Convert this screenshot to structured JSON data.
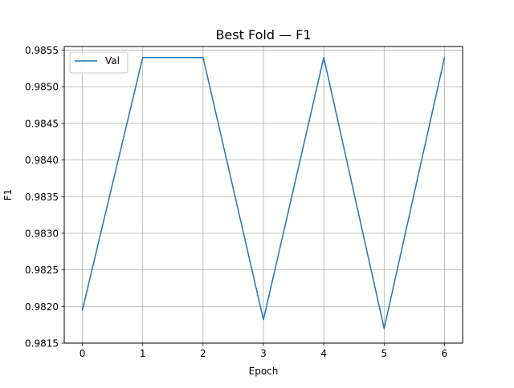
{
  "chart_data": {
    "type": "line",
    "title": "Best Fold — F1",
    "xlabel": "Epoch",
    "ylabel": "F1",
    "x": [
      0,
      1,
      2,
      3,
      4,
      5,
      6
    ],
    "series": [
      {
        "name": "Val",
        "color": "#1f77b4",
        "values": [
          0.98195,
          0.9854,
          0.9854,
          0.98182,
          0.9854,
          0.9817,
          0.9854
        ]
      }
    ],
    "xlim": [
      -0.3,
      6.3
    ],
    "ylim": [
      0.9815,
      0.98555
    ],
    "xticks": [
      0,
      1,
      2,
      3,
      4,
      5,
      6
    ],
    "xtick_labels": [
      "0",
      "1",
      "2",
      "3",
      "4",
      "5",
      "6"
    ],
    "yticks": [
      0.9815,
      0.982,
      0.9825,
      0.983,
      0.9835,
      0.984,
      0.9845,
      0.985,
      0.9855
    ],
    "ytick_labels": [
      "0.9815",
      "0.9820",
      "0.9825",
      "0.9830",
      "0.9835",
      "0.9840",
      "0.9845",
      "0.9850",
      "0.9855"
    ],
    "grid": true,
    "legend_position": "top-left"
  }
}
